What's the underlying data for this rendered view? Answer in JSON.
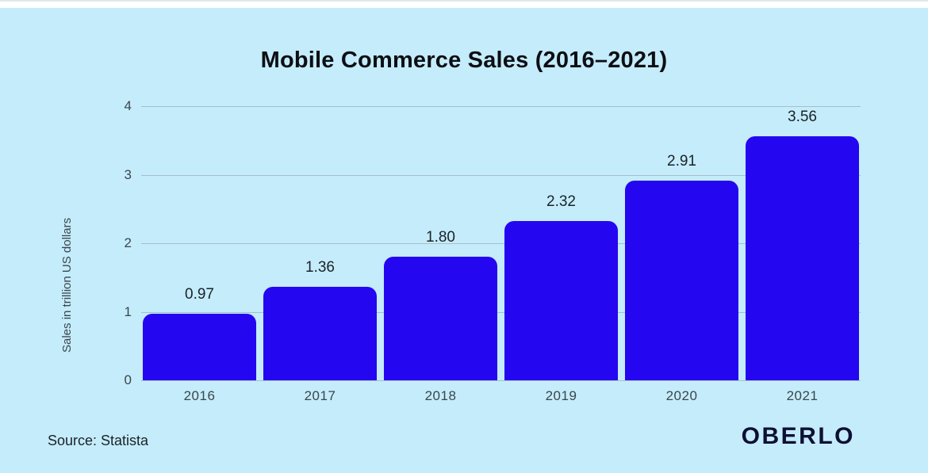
{
  "chart_data": {
    "type": "bar",
    "title": "Mobile Commerce Sales (2016–2021)",
    "categories": [
      "2016",
      "2017",
      "2018",
      "2019",
      "2020",
      "2021"
    ],
    "values": [
      0.97,
      1.36,
      1.8,
      2.32,
      2.91,
      3.56
    ],
    "value_labels": [
      "0.97",
      "1.36",
      "1.80",
      "2.32",
      "2.91",
      "3.56"
    ],
    "xlabel": "",
    "ylabel": "Sales in trillion US dollars",
    "ylim": [
      0,
      4
    ],
    "yticks": [
      0,
      1,
      2,
      3,
      4
    ],
    "grid": true,
    "legend": false
  },
  "footer": {
    "source": "Source: Statista",
    "logo": "OBERLO"
  },
  "colors": {
    "background": "#c5ecfa",
    "bar": "#2506f1",
    "title": "#0c0f14",
    "tick": "#3a464e",
    "value_label": "#1a222b",
    "gridline": "#a5bfcb",
    "logo": "#0d1033"
  }
}
